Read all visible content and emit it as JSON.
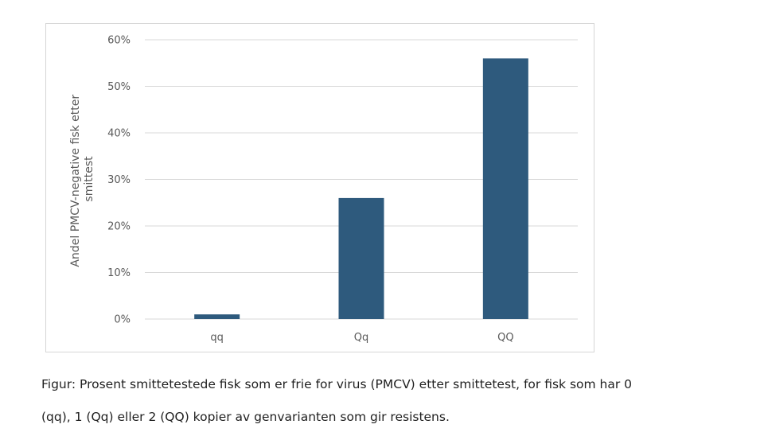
{
  "chart_data": {
    "type": "bar",
    "title": "",
    "categories": [
      "qq",
      "Qq",
      "QQ"
    ],
    "values": [
      1,
      26,
      56
    ],
    "value_format": "percent",
    "ylabel_lines": [
      "Andel PMCV-negative fisk etter",
      "smittest"
    ],
    "xlabel": "",
    "ylim": [
      0,
      60
    ],
    "yticks": [
      0,
      10,
      20,
      30,
      40,
      50,
      60
    ],
    "ytick_labels": [
      "0%",
      "10%",
      "20%",
      "30%",
      "40%",
      "50%",
      "60%"
    ],
    "grid": true,
    "legend": "none",
    "bar_color": "#2e5a7d",
    "grid_color": "#d9d9d9"
  },
  "caption": {
    "line1": "Figur: Prosent smittetestede fisk som er frie for virus (PMCV) etter smittetest, for fisk som har 0",
    "line2": "(qq), 1 (Qq) eller 2 (QQ) kopier av genvarianten som gir resistens."
  }
}
